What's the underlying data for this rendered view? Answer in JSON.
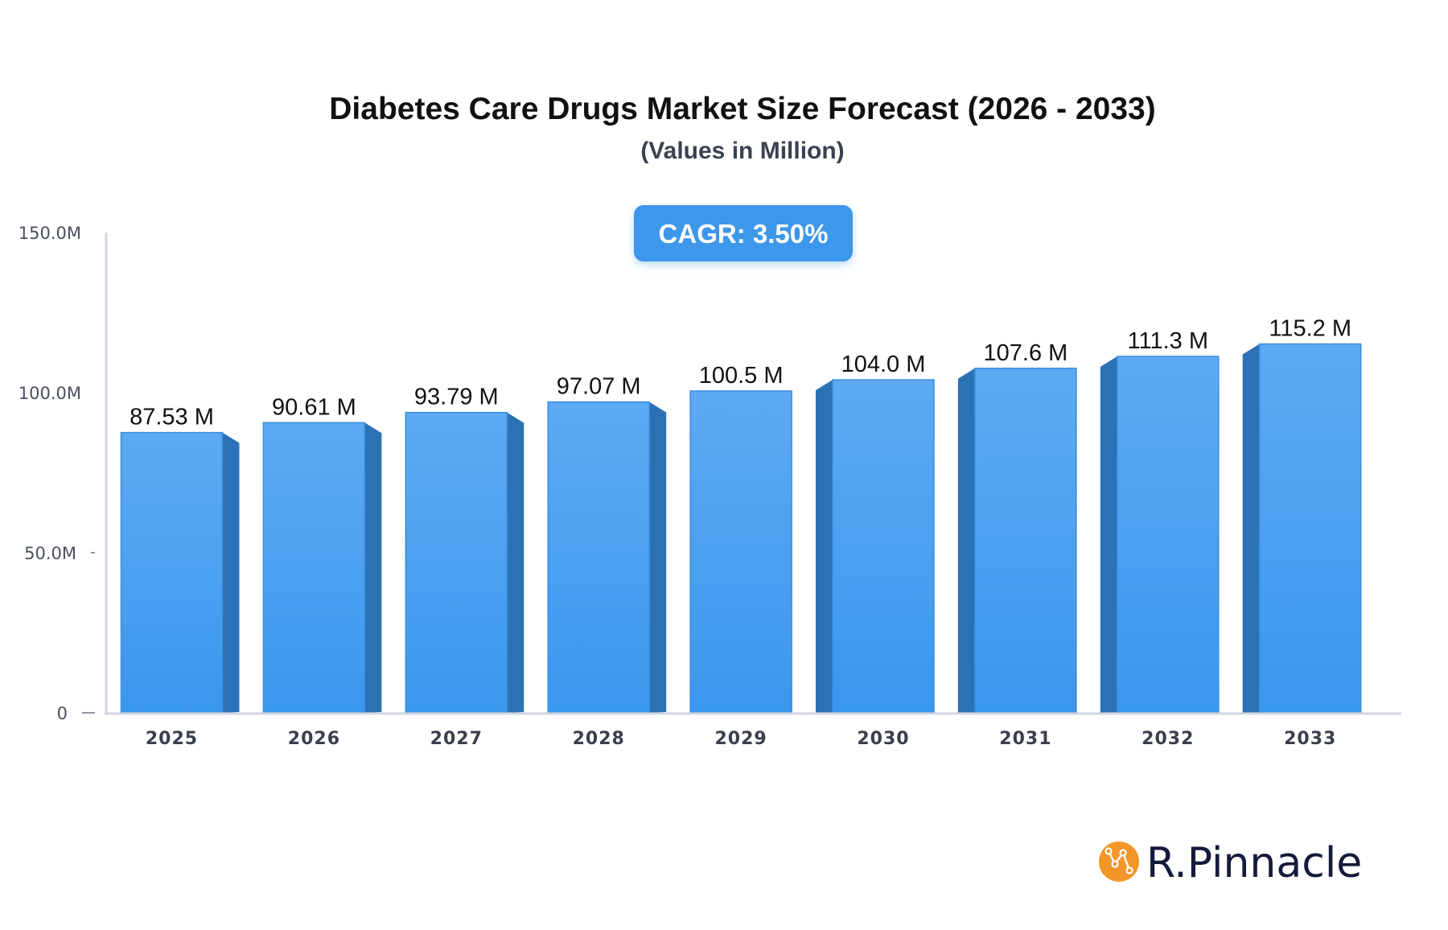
{
  "chart_data": {
    "type": "bar",
    "title": "Diabetes Care Drugs Market Size Forecast (2026 - 2033)",
    "subtitle": "(Values in Million)",
    "categories": [
      "2025",
      "2026",
      "2027",
      "2028",
      "2029",
      "2030",
      "2031",
      "2032",
      "2033"
    ],
    "values": [
      87.53,
      90.61,
      93.79,
      97.07,
      100.5,
      104.0,
      107.6,
      111.3,
      115.2
    ],
    "data_labels": [
      "87.53 M",
      "90.61 M",
      "93.79 M",
      "97.07 M",
      "100.5 M",
      "104.0 M",
      "107.6 M",
      "111.3 M",
      "115.2 M"
    ],
    "y_ticks": [
      0,
      50,
      100,
      150
    ],
    "y_tick_labels": [
      "0",
      "50.0M",
      "100.0M",
      "150.0M"
    ],
    "ylim": [
      0,
      150
    ],
    "xlabel": "",
    "ylabel": "",
    "grid": false,
    "legend": "none",
    "bar_color": "#4aa3f0",
    "bar_side_color": "#2b72b5"
  },
  "cagr_badge": {
    "label": "CAGR: 3.50%",
    "color": "#3d97ea"
  },
  "brand": {
    "name": "R.Pinnacle",
    "logo_color": "#f2962a"
  }
}
